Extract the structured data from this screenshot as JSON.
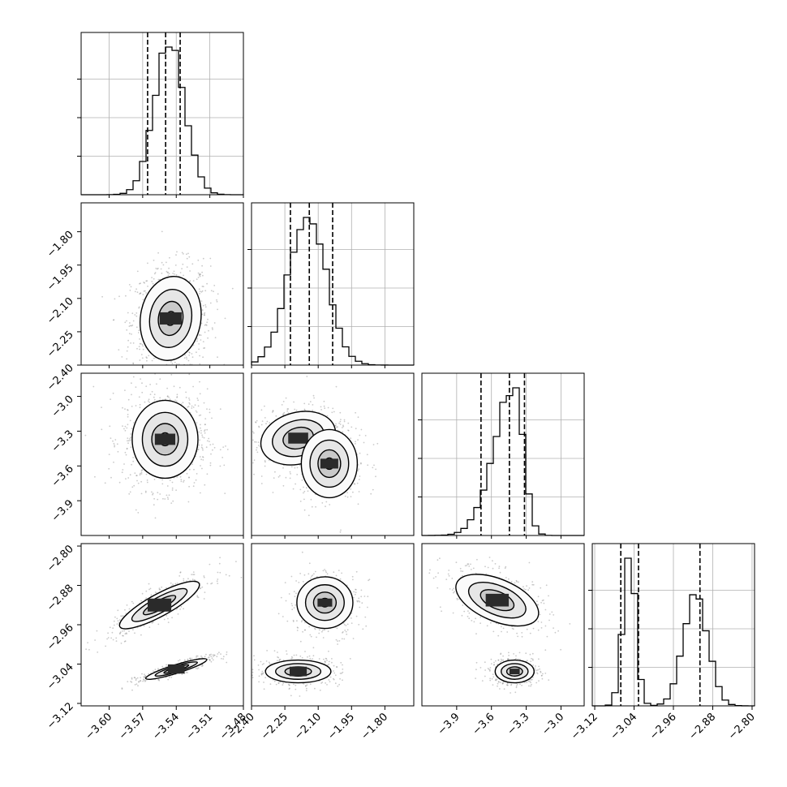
{
  "chart_data": {
    "type": "corner",
    "parameters": [
      {
        "range": [
          -3.625,
          -3.48
        ],
        "ticks": [
          -3.6,
          -3.57,
          -3.54,
          -3.51,
          -3.48
        ],
        "tick_labels": [
          "−3.60",
          "−3.57",
          "−3.54",
          "−3.51",
          "−3.48"
        ],
        "quantiles": [
          -3.5656,
          -3.5495,
          -3.5365
        ],
        "hist_peak": -3.546,
        "hist_sigma": 0.0135,
        "hist_max": 1.0
      },
      {
        "range": [
          -2.4,
          -1.67
        ],
        "ticks": [
          -2.4,
          -2.25,
          -2.1,
          -1.95,
          -1.8
        ],
        "tick_labels": [
          "−2.40",
          "−2.25",
          "−2.10",
          "−1.95",
          "−1.80"
        ],
        "quantiles": [
          -2.225,
          -2.14,
          -2.035
        ],
        "hist_peak": -2.15,
        "hist_sigma": 0.085,
        "hist_max": 1.0
      },
      {
        "range": [
          -4.2,
          -2.8
        ],
        "ticks": [
          -3.9,
          -3.6,
          -3.3,
          -3.0
        ],
        "tick_labels": [
          "−3.9",
          "−3.6",
          "−3.3",
          "−3.0"
        ],
        "quantiles": [
          -3.69,
          -3.445,
          -3.315
        ],
        "hist_peak": -3.4,
        "hist_sigma": 0.11,
        "hist_max": 1.0
      },
      {
        "range": [
          -3.125,
          -2.795
        ],
        "ticks": [
          -3.12,
          -3.04,
          -2.96,
          -2.88,
          -2.8
        ],
        "tick_labels": [
          "−3.12",
          "−3.04",
          "−2.96",
          "−2.88",
          "−2.80"
        ],
        "quantiles": [
          -3.067,
          -3.031,
          -2.906
        ],
        "hist_peak": -3.055,
        "hist_sigma": 0.012,
        "hist_max": 1.0
      }
    ],
    "joint": [
      {
        "row": 1,
        "col": 0,
        "modes": [
          {
            "x": -3.545,
            "y": -2.19,
            "sx": 0.013,
            "sy": 0.09,
            "rho": 0.1,
            "w": 1.0
          }
        ]
      },
      {
        "row": 2,
        "col": 0,
        "modes": [
          {
            "x": -3.55,
            "y": -3.37,
            "sx": 0.014,
            "sy": 0.16,
            "rho": 0.0,
            "w": 1.0
          }
        ]
      },
      {
        "row": 2,
        "col": 1,
        "modes": [
          {
            "x": -2.19,
            "y": -3.36,
            "sx": 0.08,
            "sy": 0.11,
            "rho": 0.2,
            "w": 0.7
          },
          {
            "x": -2.05,
            "y": -3.58,
            "sx": 0.06,
            "sy": 0.14,
            "rho": 0.0,
            "w": 0.3
          }
        ]
      },
      {
        "row": 3,
        "col": 0,
        "modes": [
          {
            "x": -3.555,
            "y": -2.92,
            "sx": 0.017,
            "sy": 0.023,
            "rho": 0.85,
            "w": 0.5
          },
          {
            "x": -3.54,
            "y": -3.05,
            "sx": 0.013,
            "sy": 0.01,
            "rho": 0.9,
            "w": 0.5
          }
        ]
      },
      {
        "row": 3,
        "col": 1,
        "modes": [
          {
            "x": -2.07,
            "y": -2.915,
            "sx": 0.06,
            "sy": 0.025,
            "rho": 0.0,
            "w": 0.5
          },
          {
            "x": -2.19,
            "y": -3.055,
            "sx": 0.07,
            "sy": 0.011,
            "rho": 0.0,
            "w": 0.5
          }
        ]
      },
      {
        "row": 3,
        "col": 2,
        "modes": [
          {
            "x": -3.55,
            "y": -2.91,
            "sx": 0.17,
            "sy": 0.025,
            "rho": -0.5,
            "w": 0.5
          },
          {
            "x": -3.4,
            "y": -3.055,
            "sx": 0.08,
            "sy": 0.011,
            "rho": 0.0,
            "w": 0.5
          }
        ]
      }
    ],
    "grid": true,
    "title": "",
    "xlabel": "",
    "ylabel": ""
  }
}
